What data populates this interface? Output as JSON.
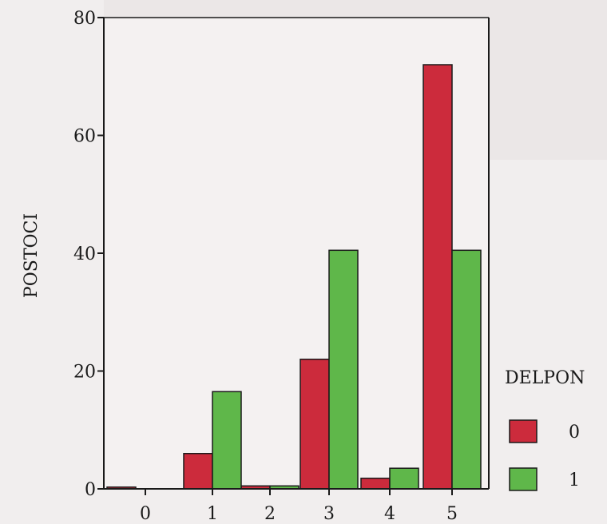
{
  "chart_data": {
    "type": "bar",
    "title": "",
    "xlabel": "",
    "ylabel": "POSTOCI",
    "categories": [
      "0",
      "1",
      "2",
      "3",
      "4",
      "5"
    ],
    "yticks": [
      "0",
      "20",
      "40",
      "60",
      "80"
    ],
    "ylim": [
      0,
      80
    ],
    "legend": {
      "title": "DELPON",
      "placement": "right"
    },
    "series": [
      {
        "name": "0",
        "color": "#cc2b3c",
        "values": [
          0.3,
          6,
          0.5,
          22,
          1.8,
          72
        ]
      },
      {
        "name": "1",
        "color": "#5fb74a",
        "values": [
          0,
          16.5,
          0.5,
          40.5,
          3.5,
          40.5
        ]
      }
    ],
    "grid": false
  }
}
